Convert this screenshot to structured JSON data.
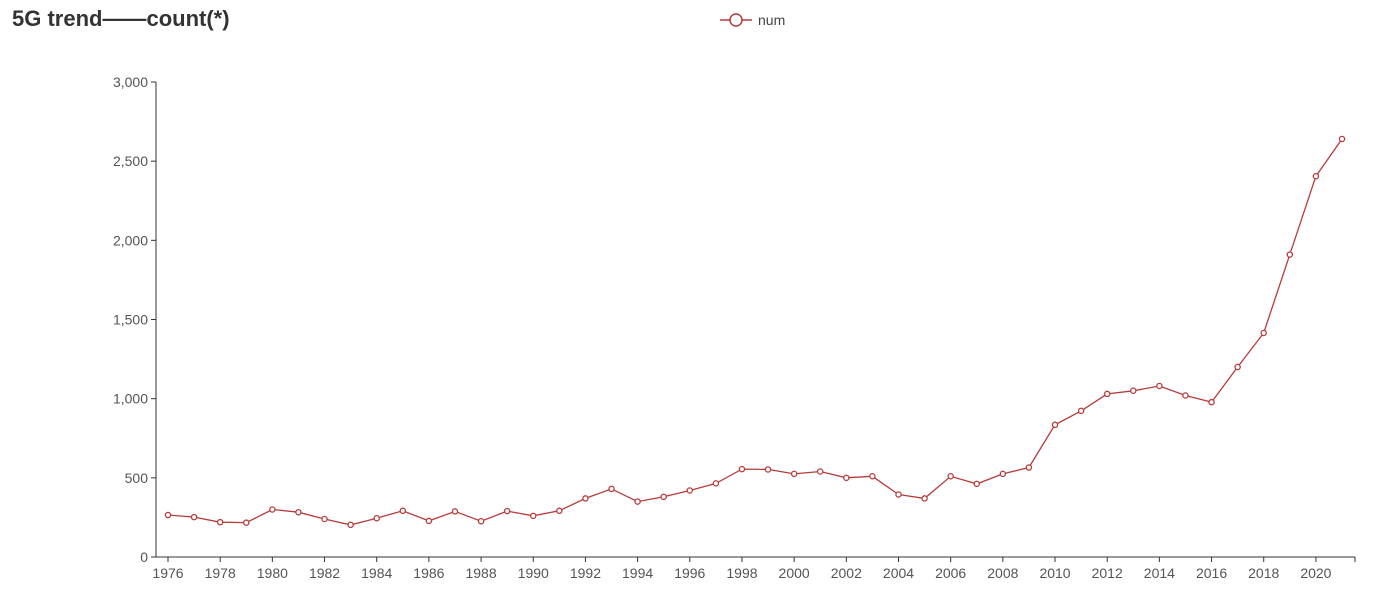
{
  "chart_data": {
    "type": "line",
    "title": "5G trend——count(*)",
    "xlabel": "",
    "ylabel": "",
    "ylim": [
      0,
      3000
    ],
    "yticks": [
      0,
      500,
      1000,
      1500,
      2000,
      2500,
      3000
    ],
    "ytick_labels": [
      "0",
      "500",
      "1,000",
      "1,500",
      "2,000",
      "2,500",
      "3,000"
    ],
    "xlim": [
      1976,
      2021
    ],
    "xticks": [
      1976,
      1978,
      1980,
      1982,
      1984,
      1986,
      1988,
      1990,
      1992,
      1994,
      1996,
      1998,
      2000,
      2002,
      2004,
      2006,
      2008,
      2010,
      2012,
      2014,
      2016,
      2018,
      2020
    ],
    "grid": false,
    "legend_position": "top-center",
    "series": [
      {
        "name": "num",
        "color": "#b83b3b",
        "x": [
          1976,
          1977,
          1978,
          1979,
          1980,
          1981,
          1982,
          1983,
          1984,
          1985,
          1986,
          1987,
          1988,
          1989,
          1990,
          1991,
          1992,
          1993,
          1994,
          1995,
          1996,
          1997,
          1998,
          1999,
          2000,
          2001,
          2002,
          2003,
          2004,
          2005,
          2006,
          2007,
          2008,
          2009,
          2010,
          2011,
          2012,
          2013,
          2014,
          2015,
          2016,
          2017,
          2018,
          2019,
          2020,
          2021
        ],
        "values": [
          265,
          252,
          220,
          217,
          300,
          283,
          240,
          203,
          245,
          292,
          228,
          288,
          226,
          290,
          260,
          292,
          370,
          430,
          350,
          380,
          420,
          465,
          555,
          553,
          525,
          540,
          500,
          510,
          395,
          370,
          510,
          462,
          525,
          565,
          835,
          923,
          1030,
          1050,
          1080,
          1020,
          978,
          1200,
          1415,
          1910,
          2405,
          2640
        ]
      }
    ]
  }
}
